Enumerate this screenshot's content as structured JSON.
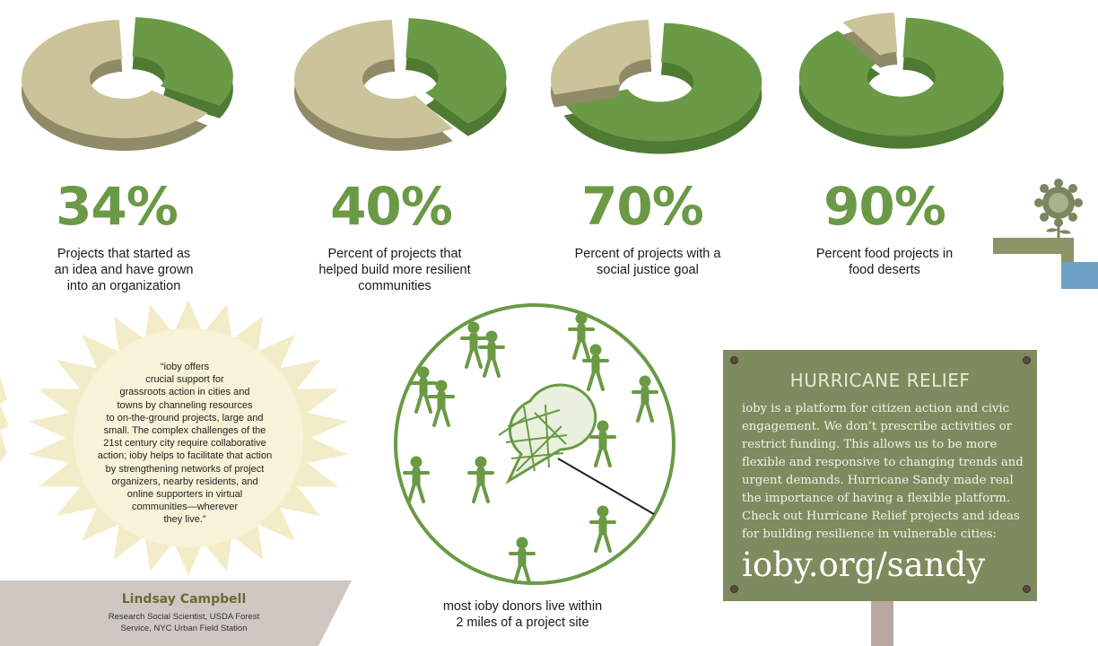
{
  "stats": [
    {
      "value": "34%",
      "caption": "Projects that started as\nan idea and have grown\ninto an organization",
      "fraction": 0.34
    },
    {
      "value": "40%",
      "caption": "Percent of projects that\nhelped build more resilient\ncommunities",
      "fraction": 0.4
    },
    {
      "value": "70%",
      "caption": "Percent of projects with a\nsocial justice goal",
      "fraction": 0.7
    },
    {
      "value": "90%",
      "caption": "Percent food projects in\nfood deserts",
      "fraction": 0.9
    }
  ],
  "quote": {
    "text": "“ioby offers\ncrucial support for\ngrassroots action in cities and\ntowns by channeling resources\nto on-the-ground projects, large and\nsmall. The complex challenges of the\n21st century city require collaborative\naction; ioby helps to facilitate that action\nby strengthening networks of project\norganizers, nearby residents, and\nonline supporters in virtual\ncommunities—wherever\nthey live.”",
    "name": "Lindsay Campbell",
    "title": "Research Social Scientist, USDA Forest\nService, NYC Urban Field Station"
  },
  "donors": {
    "caption": "most ioby donors live within\n2 miles of a project site"
  },
  "sign": {
    "title": "HURRICANE RELIEF",
    "body": "ioby is a platform for citizen action and civic engagement. We don’t prescribe activities or restrict funding. This allows us to be more flexible and responsive to changing trends and urgent demands. Hurricane Sandy made real the importance of having a flexible platform. Check out Hurricane Relief projects and ideas for building resilience in vulnerable cities:",
    "url": "ioby.org/sandy"
  },
  "colors": {
    "green": "#6a9a45",
    "green_dark": "#4f7a33",
    "tan": "#cbc39a",
    "tan_dark": "#8f8a68",
    "sign": "#7e8b5f",
    "sunburst": "#f3ecc8"
  }
}
